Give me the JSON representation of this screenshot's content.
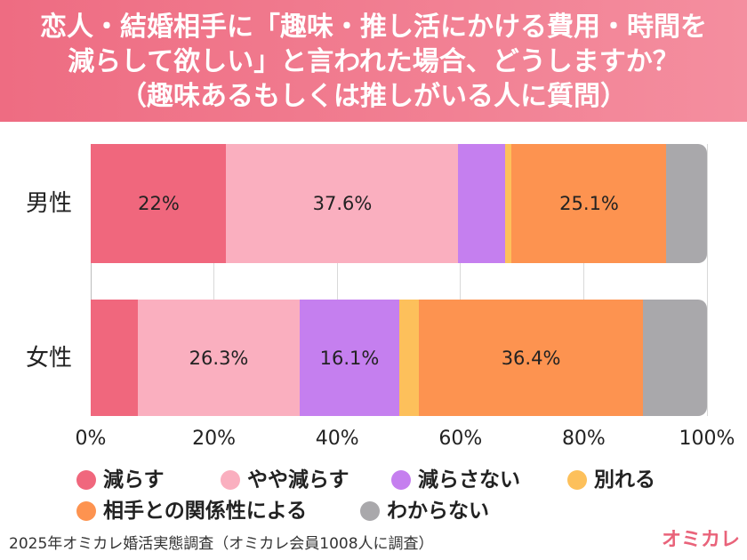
{
  "header": {
    "title_lines": [
      "恋人・結婚相手に「趣味・推し活にかける費用・時間を",
      "減らして欲しい」と言われた場合、どうしますか？",
      "（趣味あるもしくは推しがいる人に質問）"
    ],
    "colors": {
      "start": "#EE6C82",
      "end": "#F48E9F"
    }
  },
  "chart_data": {
    "type": "bar",
    "orientation": "horizontal",
    "stacked": true,
    "categories": [
      "男性",
      "女性"
    ],
    "xlim": [
      0,
      100
    ],
    "x_ticks": [
      "0%",
      "20%",
      "40%",
      "60%",
      "80%",
      "100%"
    ],
    "grid": true,
    "legend_position": "bottom",
    "series": [
      {
        "name": "減らす",
        "color": "#F0677D",
        "values": [
          22,
          7.6
        ],
        "labels": [
          "22%",
          null
        ]
      },
      {
        "name": "やや減らす",
        "color": "#FAAFBF",
        "values": [
          37.6,
          26.3
        ],
        "labels": [
          "37.6%",
          "26.3%"
        ]
      },
      {
        "name": "減らさない",
        "color": "#C57FEF",
        "values": [
          7.6,
          16.1
        ],
        "labels": [
          null,
          "16.1%"
        ]
      },
      {
        "name": "別れる",
        "color": "#FDC05B",
        "values": [
          1.1,
          3.2
        ],
        "labels": [
          null,
          null
        ]
      },
      {
        "name": "相手との関係性による",
        "color": "#FD9350",
        "values": [
          25.1,
          36.4
        ],
        "labels": [
          "25.1%",
          "36.4%"
        ]
      },
      {
        "name": "わからない",
        "color": "#A9A8AB",
        "values": [
          6.6,
          10.4
        ],
        "labels": [
          null,
          null
        ]
      }
    ]
  },
  "footer": {
    "source": "2025年オミカレ婚活実態調査（オミカレ会員1008人に調査）",
    "logo": "オミカレ",
    "logo_color": "#E9637A"
  }
}
